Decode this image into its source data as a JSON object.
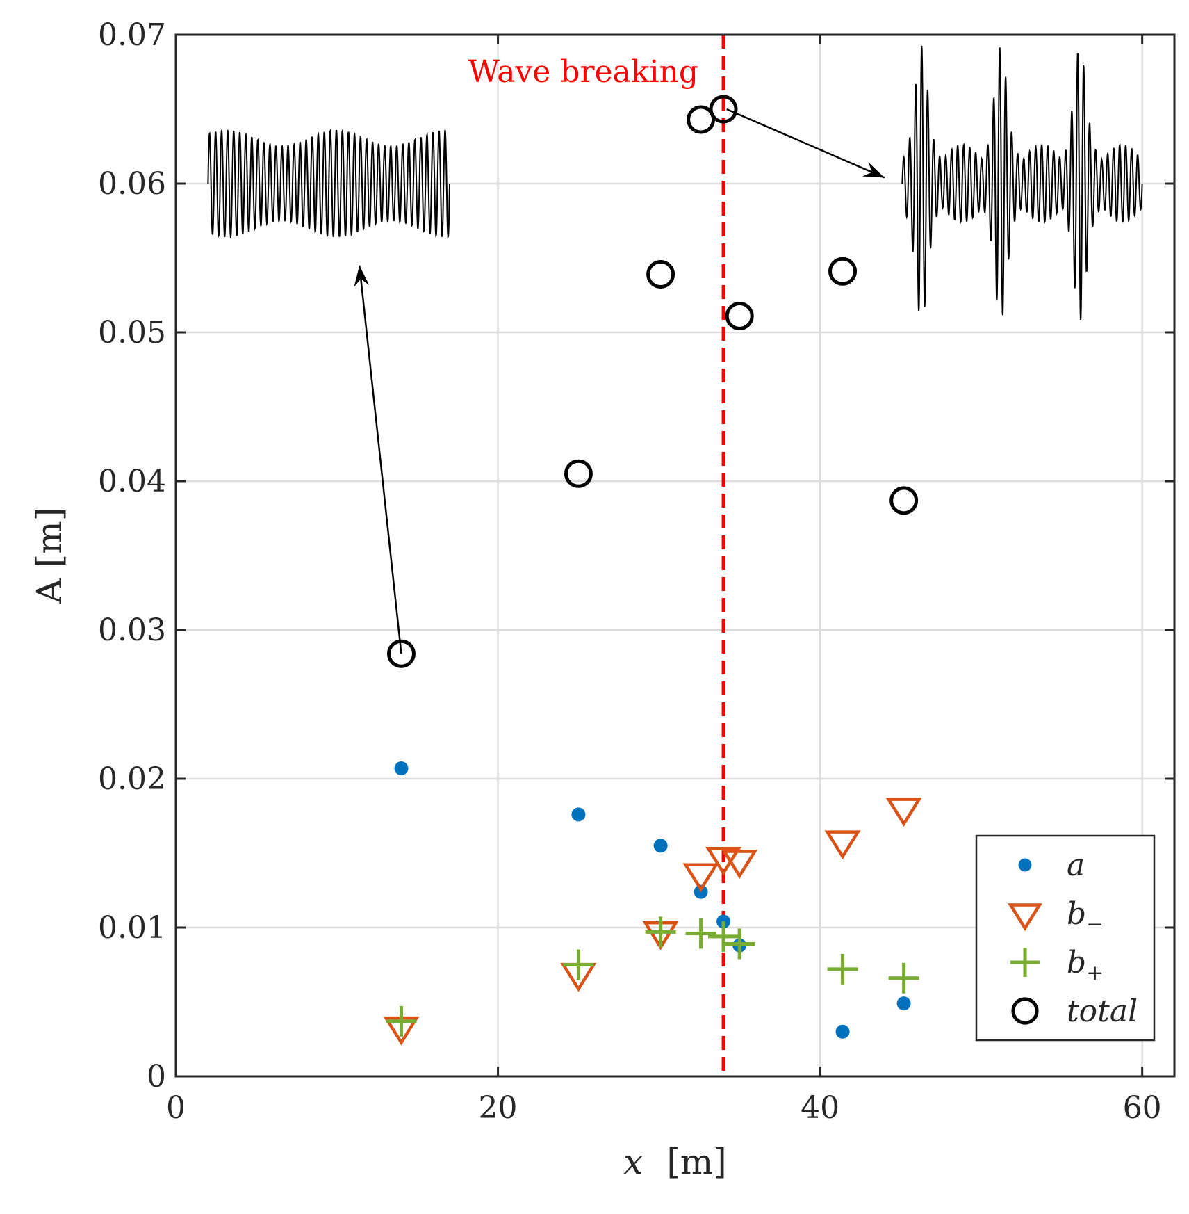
{
  "chart_data": {
    "type": "scatter",
    "title": "",
    "xlabel_var": "x",
    "xlabel_unit": "[m]",
    "ylabel": "A [m]",
    "xlim": [
      0,
      62
    ],
    "ylim": [
      0,
      0.07
    ],
    "xticks": [
      0,
      20,
      40,
      60
    ],
    "xtick_labels": [
      "0",
      "20",
      "40",
      "60"
    ],
    "yticks": [
      0,
      0.01,
      0.02,
      0.03,
      0.04,
      0.05,
      0.06,
      0.07
    ],
    "ytick_labels": [
      "0",
      "0.01",
      "0.02",
      "0.03",
      "0.04",
      "0.05",
      "0.06",
      "0.07"
    ],
    "grid": true,
    "legend_position": "bottom-right",
    "vertical_line": {
      "x": 34,
      "label": "Wave breaking",
      "color": "#ff0000",
      "style": "dashed"
    },
    "series": [
      {
        "name": "a",
        "marker": "dot",
        "color": "#0072bd",
        "points": [
          {
            "x": 14,
            "y": 0.0207
          },
          {
            "x": 25,
            "y": 0.0176
          },
          {
            "x": 30.1,
            "y": 0.0155
          },
          {
            "x": 32.6,
            "y": 0.0124
          },
          {
            "x": 34,
            "y": 0.0104
          },
          {
            "x": 35,
            "y": 0.0088
          },
          {
            "x": 41.4,
            "y": 0.003
          },
          {
            "x": 45.2,
            "y": 0.0049
          }
        ]
      },
      {
        "name": "b",
        "name_sub": "−",
        "marker": "triangle-down",
        "color": "#d95319",
        "points": [
          {
            "x": 14,
            "y": 0.0033
          },
          {
            "x": 25,
            "y": 0.0069
          },
          {
            "x": 30.1,
            "y": 0.0097
          },
          {
            "x": 32.6,
            "y": 0.0136
          },
          {
            "x": 34,
            "y": 0.0147
          },
          {
            "x": 35,
            "y": 0.0145
          },
          {
            "x": 41.4,
            "y": 0.0158
          },
          {
            "x": 45.2,
            "y": 0.018
          }
        ]
      },
      {
        "name": "b",
        "name_sub": "+",
        "marker": "plus",
        "color": "#77ac30",
        "points": [
          {
            "x": 14,
            "y": 0.0037
          },
          {
            "x": 25,
            "y": 0.0075
          },
          {
            "x": 30.1,
            "y": 0.0097
          },
          {
            "x": 32.6,
            "y": 0.0096
          },
          {
            "x": 34,
            "y": 0.0094
          },
          {
            "x": 35,
            "y": 0.0089
          },
          {
            "x": 41.4,
            "y": 0.0072
          },
          {
            "x": 45.2,
            "y": 0.0066
          }
        ]
      },
      {
        "name": "total",
        "marker": "circle",
        "color": "#000000",
        "points": [
          {
            "x": 14,
            "y": 0.0284
          },
          {
            "x": 25,
            "y": 0.0405
          },
          {
            "x": 30.1,
            "y": 0.0539
          },
          {
            "x": 32.6,
            "y": 0.0643
          },
          {
            "x": 34,
            "y": 0.065
          },
          {
            "x": 35,
            "y": 0.0511
          },
          {
            "x": 41.4,
            "y": 0.0541
          },
          {
            "x": 45.2,
            "y": 0.0387
          }
        ]
      }
    ],
    "insets": [
      {
        "name": "pre-breaking-wave-trace",
        "description_kind": "regular-oscillation",
        "x_range": [
          2,
          17
        ],
        "y_center": 0.06,
        "amplitude": 0.0036,
        "cycles": 40,
        "arrow_from": {
          "x": 14,
          "y": 0.0284
        },
        "arrow_to": {
          "x": 11.4,
          "y": 0.0545
        }
      },
      {
        "name": "post-breaking-wave-trace",
        "description_kind": "irregular-oscillation",
        "x_range": [
          45.1,
          60
        ],
        "y_center": 0.06,
        "amplitude": 0.0035,
        "cycles": 40,
        "arrow_from": {
          "x": 34.2,
          "y": 0.065
        },
        "arrow_to": {
          "x": 44,
          "y": 0.0604
        }
      }
    ]
  }
}
